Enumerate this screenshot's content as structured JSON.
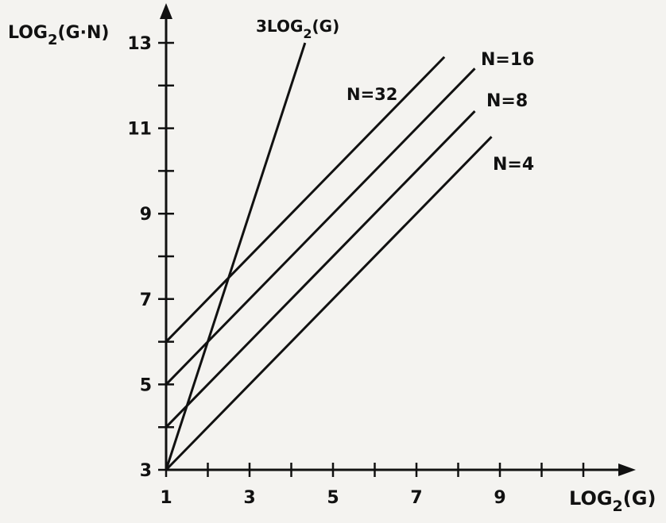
{
  "chart_data": {
    "type": "line",
    "xlabel": "LOG2(G)",
    "ylabel": "LOG2(G·N)",
    "xlim": [
      1,
      11
    ],
    "ylim": [
      3,
      14
    ],
    "x_ticks_labeled": [
      "1",
      "3",
      "5",
      "7",
      "9"
    ],
    "y_ticks_labeled": [
      "3",
      "5",
      "7",
      "9",
      "11",
      "13"
    ],
    "grid": false,
    "series": [
      {
        "name": "3LOG2(G)",
        "x": [
          1,
          4.33
        ],
        "y": [
          3,
          13
        ]
      },
      {
        "name": "N=32",
        "x": [
          1,
          7.67
        ],
        "y": [
          6,
          12.67
        ]
      },
      {
        "name": "N=16",
        "x": [
          1,
          8.4
        ],
        "y": [
          5,
          12.4
        ]
      },
      {
        "name": "N=8",
        "x": [
          1,
          8.4
        ],
        "y": [
          4,
          11.4
        ]
      },
      {
        "name": "N=4",
        "x": [
          1,
          8.8
        ],
        "y": [
          3,
          10.8
        ]
      }
    ]
  }
}
